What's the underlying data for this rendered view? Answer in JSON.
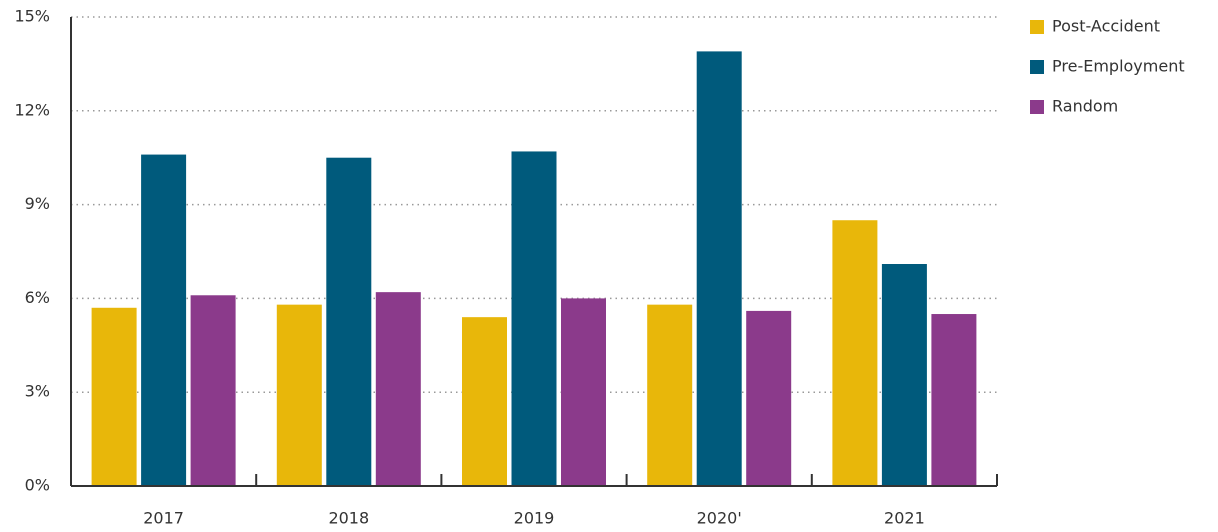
{
  "chart_data": {
    "type": "bar",
    "categories": [
      "2017",
      "2018",
      "2019",
      "2020'",
      "2021"
    ],
    "series": [
      {
        "name": "Post-Accident",
        "color": "#e8b70a",
        "values": [
          5.7,
          5.8,
          5.4,
          5.8,
          8.5
        ]
      },
      {
        "name": "Pre-Employment",
        "color": "#005a7c",
        "values": [
          10.6,
          10.5,
          10.7,
          13.9,
          7.1
        ]
      },
      {
        "name": "Random",
        "color": "#8b3a8b",
        "values": [
          6.1,
          6.2,
          6.0,
          5.6,
          5.5
        ]
      }
    ],
    "ylim": [
      0,
      15
    ],
    "yticks": [
      {
        "value": 0,
        "label": "0%"
      },
      {
        "value": 3,
        "label": "3%"
      },
      {
        "value": 6,
        "label": "6%"
      },
      {
        "value": 9,
        "label": "9%"
      },
      {
        "value": 12,
        "label": "12%"
      },
      {
        "value": 15,
        "label": "15%"
      }
    ],
    "grid": true,
    "legend": "right"
  }
}
